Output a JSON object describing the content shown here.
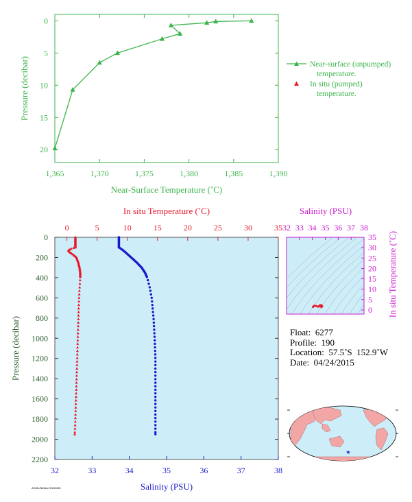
{
  "top_chart": {
    "xlabel": "Near-Surface Temperature (˚C)",
    "ylabel": "Pressure (decibar)",
    "legend": {
      "series1_line1": "Near-surface (unpumped)",
      "series1_line2": "temperature.",
      "series2_line1": "In situ (pumped)",
      "series2_line2": "temperature."
    },
    "colors": {
      "line": "#3cb44b",
      "insitu": "#e8192c",
      "axis": "#3cb44b"
    }
  },
  "main_chart": {
    "top_xlabel": "In situ Temperature (˚C)",
    "bottom_xlabel": "Salinity (PSU)",
    "ylabel": "Pressure (decibar)",
    "colors": {
      "temp": "#e8192c",
      "sal": "#1a1acc",
      "bg": "#cdeef8",
      "axis_left": "#2e5e2e"
    }
  },
  "ts_inset": {
    "top_label": "Salinity (PSU)",
    "right_label": "In situ Temperature (˚C)",
    "color": "#cc19cc"
  },
  "info": {
    "float": "Float:  6277",
    "profile": "Profile:  190",
    "location": "Location:  57.5˚S  152.9˚W",
    "date": "Date:  04/24/2015"
  },
  "footer": "AOML/NOAA 20150428",
  "chart_data": [
    {
      "type": "line",
      "title": "",
      "xlabel": "Near-Surface Temperature (˚C)",
      "ylabel": "Pressure (decibar)",
      "xlim": [
        1.365,
        1.39
      ],
      "ylim": [
        22,
        -1
      ],
      "x_ticks": [
        "1,365",
        "1,370",
        "1,375",
        "1,380",
        "1,385",
        "1,390"
      ],
      "y_ticks": [
        "0",
        "5",
        "10",
        "15",
        "20"
      ],
      "series": [
        {
          "name": "Near-surface (unpumped) temperature.",
          "points": [
            [
              1.387,
              0.0
            ],
            [
              1.383,
              0.1
            ],
            [
              1.382,
              0.3
            ],
            [
              1.378,
              0.7
            ],
            [
              1.379,
              2.0
            ],
            [
              1.377,
              2.8
            ],
            [
              1.372,
              5.0
            ],
            [
              1.37,
              6.5
            ],
            [
              1.367,
              10.7
            ],
            [
              1.365,
              19.8
            ]
          ]
        }
      ]
    },
    {
      "type": "scatter",
      "title": "",
      "ylabel": "Pressure (decibar)",
      "ylim": [
        2200,
        0
      ],
      "y_ticks": [
        "0",
        "200",
        "400",
        "600",
        "800",
        "1000",
        "1200",
        "1400",
        "1600",
        "1800",
        "2000",
        "2200"
      ],
      "top_axis": {
        "label": "In situ Temperature (˚C)",
        "lim": [
          -2,
          35
        ],
        "ticks": [
          "0",
          "5",
          "10",
          "15",
          "20",
          "25",
          "30",
          "35"
        ]
      },
      "bottom_axis": {
        "label": "Salinity (PSU)",
        "lim": [
          32,
          38
        ],
        "ticks": [
          "32",
          "33",
          "34",
          "35",
          "36",
          "37",
          "38"
        ]
      },
      "series": [
        {
          "name": "In situ Temperature (˚C)",
          "profile": [
            [
              1.4,
              0
            ],
            [
              1.4,
              60
            ],
            [
              1.4,
              100
            ],
            [
              0.8,
              110
            ],
            [
              0.2,
              130
            ],
            [
              0.5,
              150
            ],
            [
              1.0,
              170
            ],
            [
              1.6,
              200
            ],
            [
              1.9,
              250
            ],
            [
              2.1,
              300
            ],
            [
              2.2,
              350
            ],
            [
              2.2,
              400
            ],
            [
              2.1,
              500
            ],
            [
              2.0,
              600
            ],
            [
              1.9,
              800
            ],
            [
              1.8,
              1000
            ],
            [
              1.7,
              1200
            ],
            [
              1.6,
              1400
            ],
            [
              1.5,
              1600
            ],
            [
              1.4,
              1800
            ],
            [
              1.3,
              1950
            ]
          ]
        },
        {
          "name": "Salinity (PSU)",
          "profile": [
            [
              33.72,
              0
            ],
            [
              33.72,
              60
            ],
            [
              33.72,
              100
            ],
            [
              33.8,
              120
            ],
            [
              33.9,
              150
            ],
            [
              34.05,
              200
            ],
            [
              34.2,
              250
            ],
            [
              34.33,
              300
            ],
            [
              34.42,
              350
            ],
            [
              34.48,
              400
            ],
            [
              34.55,
              500
            ],
            [
              34.6,
              600
            ],
            [
              34.65,
              800
            ],
            [
              34.68,
              1000
            ],
            [
              34.7,
              1200
            ],
            [
              34.7,
              1400
            ],
            [
              34.7,
              1600
            ],
            [
              34.7,
              1800
            ],
            [
              34.7,
              1950
            ]
          ]
        }
      ]
    },
    {
      "type": "scatter",
      "title": "",
      "xlabel": "Salinity (PSU)",
      "ylabel": "In situ Temperature (˚C)",
      "xlim": [
        32,
        38
      ],
      "ylim": [
        -2,
        35
      ],
      "x_ticks": [
        "32",
        "33",
        "34",
        "35",
        "36",
        "37",
        "38"
      ],
      "y_ticks": [
        "0",
        "5",
        "10",
        "15",
        "20",
        "25",
        "30",
        "35"
      ],
      "points": [
        [
          34.05,
          1.5
        ],
        [
          34.15,
          2.0
        ],
        [
          34.3,
          1.9
        ],
        [
          34.45,
          1.6
        ],
        [
          34.55,
          1.9
        ],
        [
          34.6,
          2.3
        ],
        [
          34.7,
          2.2
        ],
        [
          34.75,
          1.8
        ],
        [
          34.7,
          1.4
        ]
      ]
    }
  ]
}
